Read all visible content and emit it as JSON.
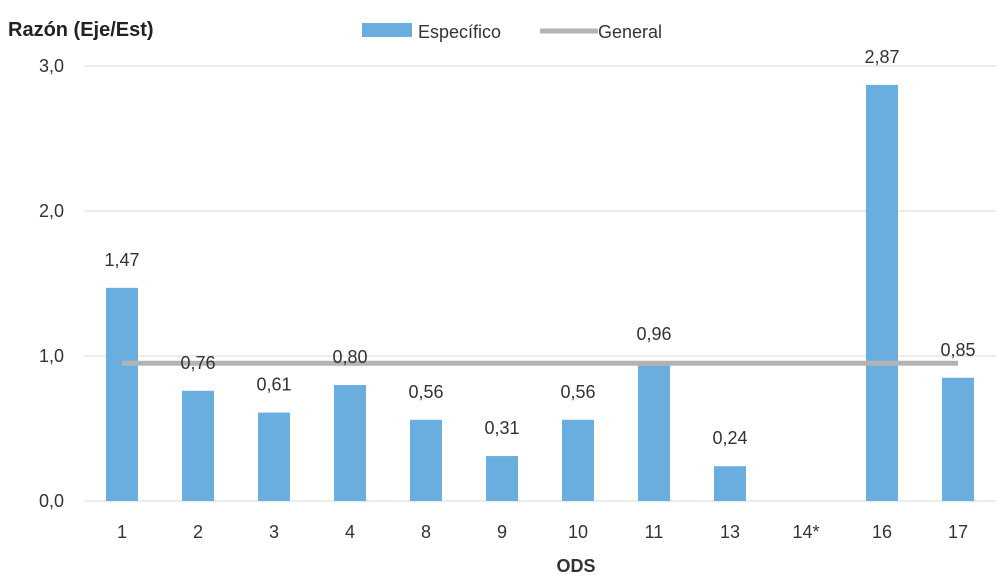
{
  "chart_data": {
    "type": "bar",
    "ylabel": "Razón (Eje/Est)",
    "xlabel": "ODS",
    "categories": [
      "1",
      "2",
      "3",
      "4",
      "8",
      "9",
      "10",
      "11",
      "13",
      "14*",
      "16",
      "17"
    ],
    "series": [
      {
        "name": "Específico",
        "type": "bar",
        "color": "#6aaee0",
        "values": [
          1.47,
          0.76,
          0.61,
          0.8,
          0.56,
          0.31,
          0.56,
          0.96,
          0.24,
          null,
          2.87,
          0.85
        ],
        "labels": [
          "1,47",
          "0,76",
          "0,61",
          "0,80",
          "0,56",
          "0,31",
          "0,56",
          "0,96",
          "0,24",
          "",
          "2,87",
          "0,85"
        ]
      },
      {
        "name": "General",
        "type": "line",
        "color": "#b3b3b3",
        "value": 0.95
      }
    ],
    "ylim": [
      0,
      3
    ],
    "yticks": [
      0,
      1,
      2,
      3
    ],
    "ytick_labels": [
      "0,0",
      "1,0",
      "2,0",
      "3,0"
    ],
    "grid": "horizontal",
    "legend_position": "top-center"
  }
}
